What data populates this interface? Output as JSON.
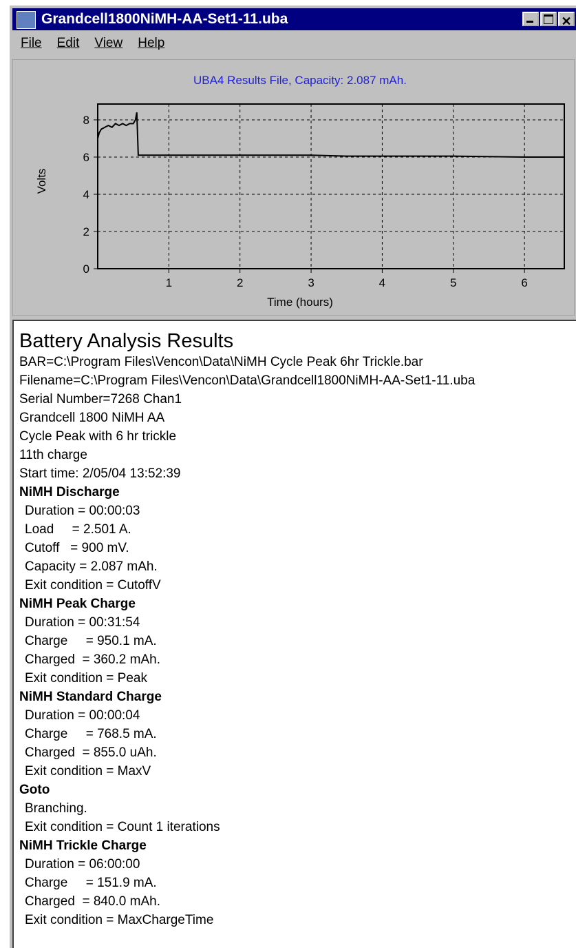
{
  "window": {
    "title": "Grandcell1800NiMH-AA-Set1-11.uba",
    "menu": [
      "File",
      "Edit",
      "View",
      "Help"
    ]
  },
  "chart_data": {
    "type": "line",
    "title": "UBA4 Results File, Capacity: 2.087 mAh.",
    "x_label": "Time (hours)",
    "y_label": "Volts",
    "x": [
      0,
      0.02,
      0.05,
      0.1,
      0.15,
      0.2,
      0.25,
      0.3,
      0.35,
      0.4,
      0.45,
      0.5,
      0.53,
      0.55,
      0.57,
      0.6,
      1.0,
      2.0,
      3.0,
      3.5,
      4.0,
      4.5,
      5.0,
      6.0,
      6.56
    ],
    "values": [
      7.0,
      7.3,
      7.5,
      7.6,
      7.7,
      7.6,
      7.8,
      7.7,
      7.8,
      7.7,
      7.8,
      7.8,
      8.0,
      8.4,
      6.1,
      6.1,
      6.1,
      6.1,
      6.1,
      6.05,
      6.05,
      6.05,
      6.05,
      6.0,
      6.0
    ],
    "color": "#000000",
    "xlim": [
      0,
      6.56
    ],
    "ylim": [
      0,
      8.85
    ],
    "xticks": [
      1,
      2,
      3,
      4,
      5,
      6
    ],
    "yticks": [
      0,
      2,
      4,
      6,
      8
    ],
    "grid": true
  },
  "results": {
    "heading": "Battery Analysis Results",
    "info": [
      "BAR=C:\\Program Files\\Vencon\\Data\\NiMH Cycle Peak 6hr Trickle.bar",
      "Filename=C:\\Program Files\\Vencon\\Data\\Grandcell1800NiMH-AA-Set1-11.uba",
      "Serial Number=7268 Chan1",
      "Grandcell 1800 NiMH AA",
      "Cycle Peak with 6 hr trickle",
      "11th charge",
      "Start time: 2/05/04 13:52:39"
    ],
    "sections": [
      {
        "title": "NiMH Discharge",
        "lines": [
          "Duration = 00:00:03",
          "Load     = 2.501 A.",
          "Cutoff   = 900 mV.",
          "Capacity = 2.087 mAh.",
          "Exit condition = CutoffV"
        ]
      },
      {
        "title": "NiMH Peak Charge",
        "lines": [
          "Duration = 00:31:54",
          "Charge     = 950.1 mA.",
          "Charged  = 360.2 mAh.",
          "Exit condition = Peak"
        ]
      },
      {
        "title": "NiMH Standard Charge",
        "lines": [
          "Duration = 00:00:04",
          "Charge     = 768.5 mA.",
          "Charged  = 855.0 uAh.",
          "Exit condition = MaxV"
        ]
      },
      {
        "title": "Goto",
        "lines": [
          "Branching.",
          "Exit condition = Count 1 iterations"
        ]
      },
      {
        "title": "NiMH Trickle Charge",
        "lines": [
          "Duration = 06:00:00",
          "Charge     = 151.9 mA.",
          "Charged  = 840.0 mAh.",
          "Exit condition = MaxChargeTime"
        ]
      }
    ]
  }
}
